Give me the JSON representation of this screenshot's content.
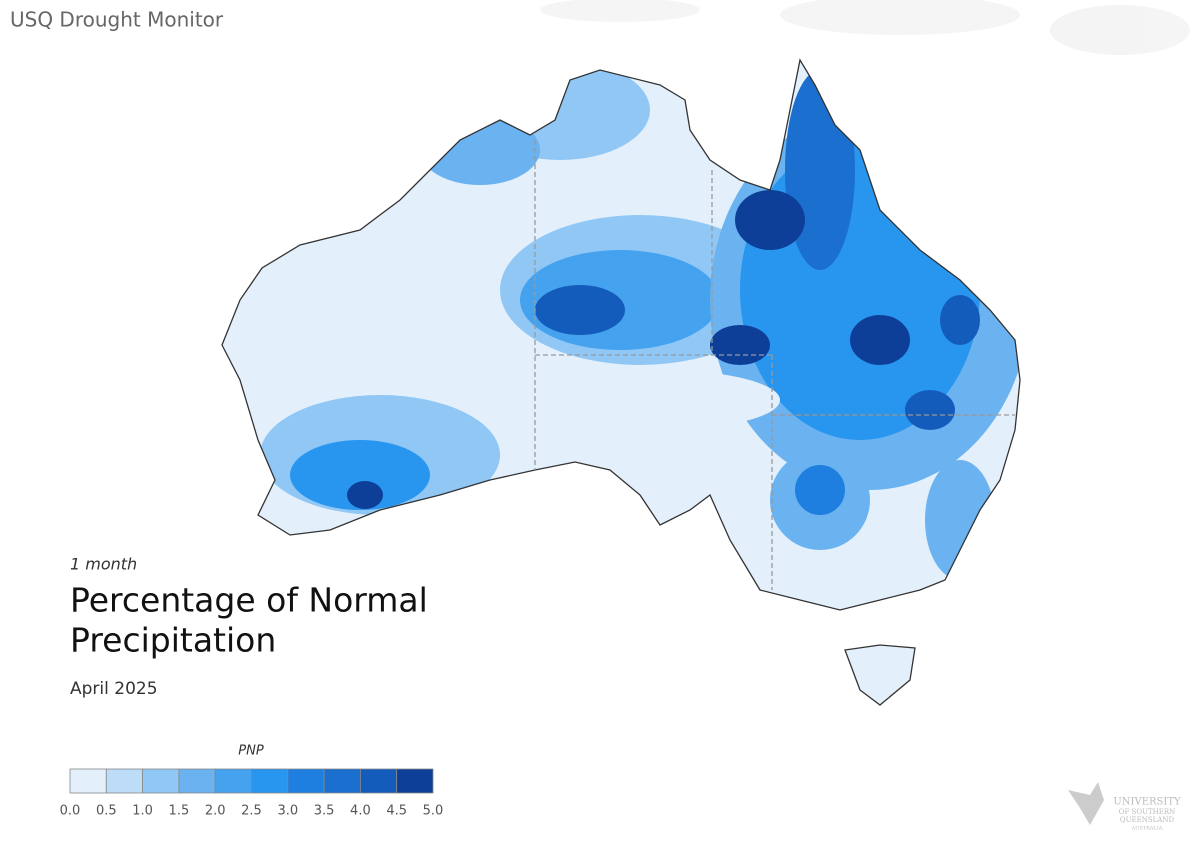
{
  "header": {
    "title": "USQ Drought Monitor"
  },
  "map_info": {
    "period": "1 month",
    "title_line1": "Percentage of Normal",
    "title_line2": "Precipitation",
    "date": "April 2025"
  },
  "legend": {
    "title": "PNP",
    "ticks": [
      "0.0",
      "0.5",
      "1.0",
      "1.5",
      "2.0",
      "2.5",
      "3.0",
      "3.5",
      "4.0",
      "4.5",
      "5.0"
    ],
    "colors": [
      "#e3f0fc",
      "#bcdcf8",
      "#90c7f5",
      "#6ab2f0",
      "#45a2ef",
      "#2895ee",
      "#1f7fe0",
      "#1a6fcf",
      "#145cbb",
      "#0d3f98"
    ]
  },
  "logo": {
    "line1": "UNIVERSITY",
    "line2": "OF SOUTHERN",
    "line3": "QUEENSLAND",
    "line4": "AUSTRALIA"
  }
}
